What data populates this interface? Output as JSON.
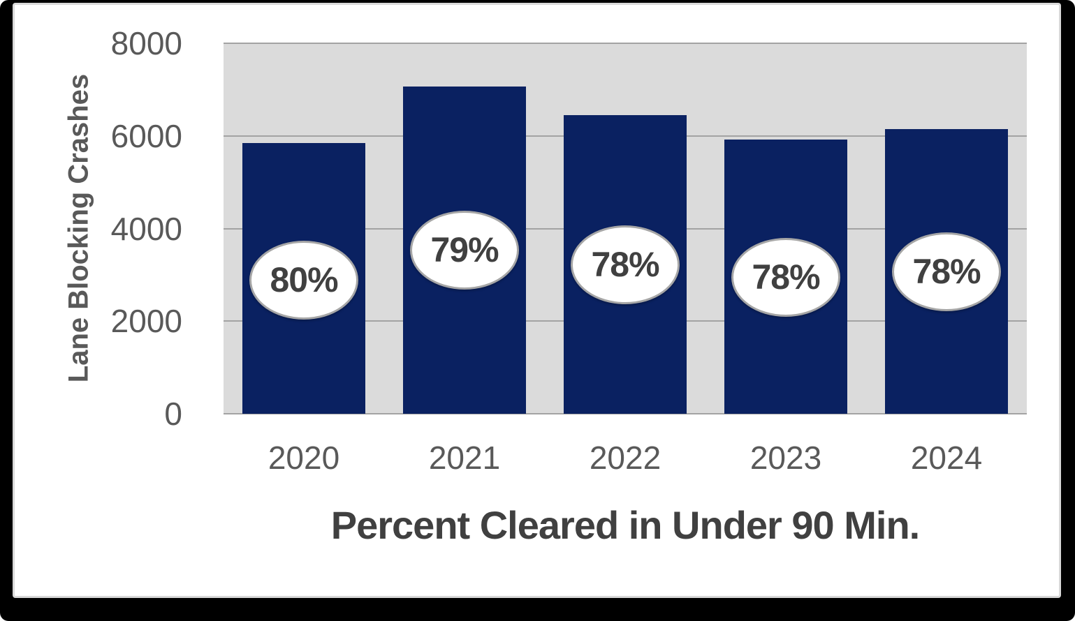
{
  "frame": {
    "background": "#000000",
    "panel_background": "#ffffff",
    "panel_border": "#d9d9d9"
  },
  "chart_data": {
    "type": "bar",
    "categories": [
      "2020",
      "2021",
      "2022",
      "2023",
      "2024"
    ],
    "series": [
      {
        "name": "Lane Blocking Crashes",
        "values": [
          5850,
          7060,
          6450,
          5920,
          6140
        ]
      }
    ],
    "bar_labels": [
      "80%",
      "79%",
      "78%",
      "78%",
      "78%"
    ],
    "title": "",
    "xlabel": "Percent Cleared in Under 90 Min.",
    "ylabel": "Lane Blocking Crashes",
    "ylim": [
      0,
      8000
    ],
    "yticks": [
      0,
      2000,
      4000,
      6000,
      8000
    ],
    "grid": true,
    "legend": "none",
    "colors": {
      "bar": "#0a2161",
      "plot_background": "#dbdbdb",
      "gridline": "#a3a3a3",
      "tick_text": "#595959",
      "axis_title_text": "#404040",
      "bar_label_text": "#404040",
      "ellipse_fill": "#ffffff",
      "ellipse_border": "#a6a6a6"
    }
  }
}
